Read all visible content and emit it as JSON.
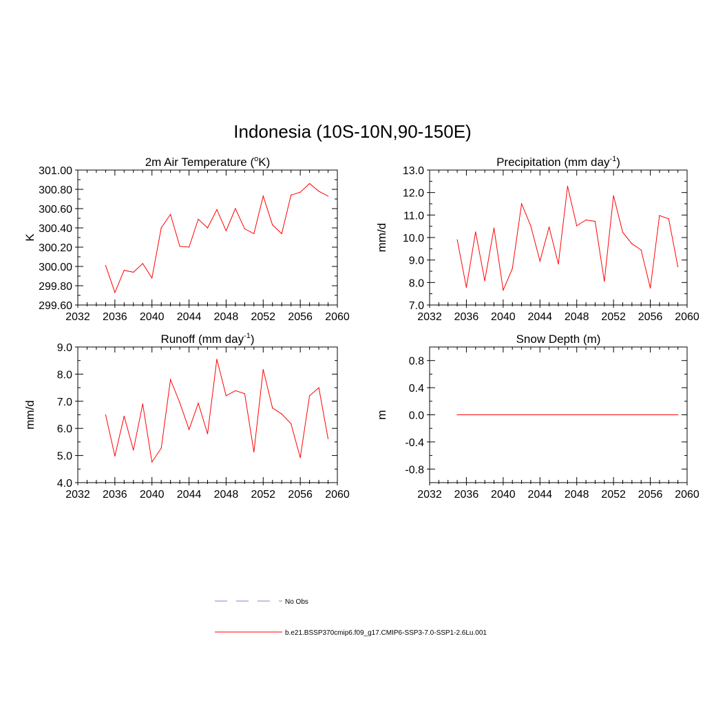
{
  "figure": {
    "title": "Indonesia (10S-10N,90-150E)"
  },
  "colors": {
    "series": "#ff0000",
    "obs": "#9a9ad6",
    "axis": "#000000"
  },
  "chart_data": [
    {
      "id": "temp",
      "type": "line",
      "title_main": "2m Air Temperature (",
      "title_sup": "o",
      "title_end": "K)",
      "ylabel": "K",
      "xlim": [
        2032,
        2060
      ],
      "ylim": [
        299.6,
        301.0
      ],
      "xticks": [
        2032,
        2036,
        2040,
        2044,
        2048,
        2052,
        2056,
        2060
      ],
      "yticks": [
        "299.60",
        "299.80",
        "300.00",
        "300.20",
        "300.40",
        "300.60",
        "300.80",
        "301.00"
      ],
      "x": [
        2035,
        2036,
        2037,
        2038,
        2039,
        2040,
        2041,
        2042,
        2043,
        2044,
        2045,
        2046,
        2047,
        2048,
        2049,
        2050,
        2051,
        2052,
        2053,
        2054,
        2055,
        2056,
        2057,
        2058,
        2059
      ],
      "series": [
        {
          "values": [
            300.01,
            299.73,
            299.96,
            299.94,
            300.03,
            299.88,
            300.4,
            300.54,
            300.21,
            300.2,
            300.49,
            300.4,
            300.59,
            300.37,
            300.6,
            300.39,
            300.34,
            300.73,
            300.43,
            300.34,
            300.74,
            300.77,
            300.86,
            300.78,
            300.73
          ]
        }
      ]
    },
    {
      "id": "prec",
      "type": "line",
      "title_main": "Precipitation (mm day",
      "title_sup": "-1",
      "title_end": ")",
      "ylabel": "mm/d",
      "xlim": [
        2032,
        2060
      ],
      "ylim": [
        7.0,
        13.0
      ],
      "xticks": [
        2032,
        2036,
        2040,
        2044,
        2048,
        2052,
        2056,
        2060
      ],
      "yticks": [
        "7.0",
        "8.0",
        "9.0",
        "10.0",
        "11.0",
        "12.0",
        "13.0"
      ],
      "x": [
        2035,
        2036,
        2037,
        2038,
        2039,
        2040,
        2041,
        2042,
        2043,
        2044,
        2045,
        2046,
        2047,
        2048,
        2049,
        2050,
        2051,
        2052,
        2053,
        2054,
        2055,
        2056,
        2057,
        2058,
        2059
      ],
      "series": [
        {
          "values": [
            9.9,
            7.78,
            10.25,
            8.08,
            10.42,
            7.66,
            8.62,
            11.5,
            10.52,
            8.95,
            10.47,
            8.82,
            12.28,
            10.52,
            10.78,
            10.72,
            8.05,
            11.86,
            10.23,
            9.72,
            9.45,
            7.75,
            10.98,
            10.83,
            8.7
          ]
        }
      ]
    },
    {
      "id": "runoff",
      "type": "line",
      "title_main": "Runoff (mm day",
      "title_sup": "-1",
      "title_end": ")",
      "ylabel": "mm/d",
      "xlim": [
        2032,
        2060
      ],
      "ylim": [
        4.0,
        9.0
      ],
      "xticks": [
        2032,
        2036,
        2040,
        2044,
        2048,
        2052,
        2056,
        2060
      ],
      "yticks": [
        "4.0",
        "5.0",
        "6.0",
        "7.0",
        "8.0",
        "9.0"
      ],
      "x": [
        2035,
        2036,
        2037,
        2038,
        2039,
        2040,
        2041,
        2042,
        2043,
        2044,
        2045,
        2046,
        2047,
        2048,
        2049,
        2050,
        2051,
        2052,
        2053,
        2054,
        2055,
        2056,
        2057,
        2058,
        2059
      ],
      "series": [
        {
          "values": [
            6.5,
            4.98,
            6.45,
            5.2,
            6.9,
            4.76,
            5.27,
            7.8,
            6.95,
            5.96,
            6.93,
            5.8,
            8.55,
            7.2,
            7.39,
            7.28,
            5.13,
            8.17,
            6.75,
            6.53,
            6.17,
            4.92,
            7.2,
            7.5,
            5.62
          ]
        }
      ]
    },
    {
      "id": "snow",
      "type": "line",
      "title_main": "Snow Depth (m)",
      "title_sup": "",
      "title_end": "",
      "ylabel": "m",
      "xlim": [
        2032,
        2060
      ],
      "ylim": [
        -1.0,
        1.0
      ],
      "xticks": [
        2032,
        2036,
        2040,
        2044,
        2048,
        2052,
        2056,
        2060
      ],
      "yticks": [
        "-0.8",
        "-0.4",
        "0.0",
        "0.4",
        "0.8"
      ],
      "yticks_values": [
        -0.8,
        -0.4,
        0.0,
        0.4,
        0.8
      ],
      "x": [
        2035,
        2059
      ],
      "series": [
        {
          "values": [
            0.0,
            0.0
          ]
        }
      ]
    }
  ],
  "legend": {
    "items": [
      {
        "label": "No Obs",
        "style": "dashed"
      },
      {
        "label": "b.e21.BSSP370cmip6.f09_g17.CMIP6-SSP3-7.0-SSP1-2.6Lu.001",
        "style": "solid"
      }
    ]
  }
}
